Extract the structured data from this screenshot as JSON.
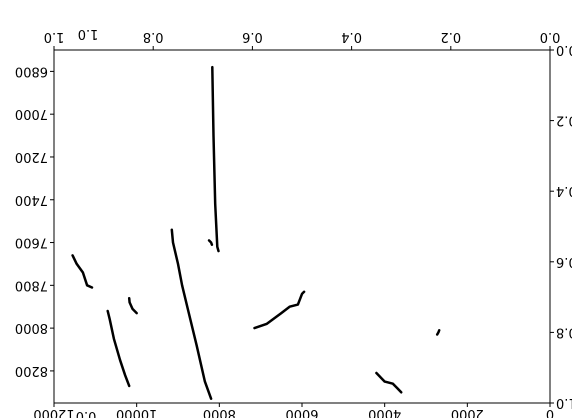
{
  "chart_data": {
    "type": "line",
    "title": "",
    "xlabel": "",
    "ylabel": "",
    "orientation": "rotated-180",
    "axes_primary": {
      "xlim": [
        0.0,
        1.0
      ],
      "ylim": [
        0.0,
        1.0
      ],
      "xticks": [
        "0.0",
        "0.2",
        "0.4",
        "0.6",
        "0.8",
        "1.0"
      ],
      "yticks": [
        "0.0",
        "0.2",
        "0.4",
        "0.6",
        "0.8",
        "1.0"
      ]
    },
    "axes_secondary": {
      "xlim": [
        0,
        12000
      ],
      "ylim": [
        6700,
        8350
      ],
      "xticks": [
        "0",
        "2000",
        "4000",
        "6000",
        "8000",
        "10000",
        "12000"
      ],
      "yticks": [
        "6800",
        "7000",
        "7200",
        "7400",
        "7600",
        "7800",
        "8000",
        "8200"
      ]
    },
    "stray_labels": [
      "1.0",
      "0.0"
    ],
    "grid": false,
    "legend": "none",
    "colors": {
      "line": "#000000",
      "axes": "#000000",
      "background": "#ffffff"
    },
    "series": [
      {
        "points": [
          [
            10700,
            7920
          ],
          [
            10650,
            7960
          ],
          [
            10550,
            8050
          ],
          [
            10400,
            8150
          ],
          [
            10280,
            8220
          ],
          [
            10180,
            8270
          ]
        ]
      },
      {
        "points": [
          [
            9150,
            7540
          ],
          [
            9120,
            7600
          ],
          [
            9000,
            7700
          ],
          [
            8900,
            7800
          ],
          [
            8750,
            7920
          ],
          [
            8550,
            8080
          ],
          [
            8350,
            8250
          ],
          [
            8200,
            8330
          ]
        ]
      },
      {
        "points": [
          [
            4200,
            8210
          ],
          [
            4000,
            8250
          ],
          [
            3800,
            8260
          ],
          [
            3750,
            8270
          ],
          [
            3700,
            8280
          ],
          [
            3600,
            8300
          ]
        ]
      },
      {
        "points": [
          [
            2680,
            8010
          ],
          [
            2700,
            8020
          ],
          [
            2730,
            8030
          ]
        ]
      },
      {
        "points": [
          [
            8170,
            6780
          ],
          [
            8140,
            7100
          ],
          [
            8100,
            7420
          ],
          [
            8050,
            7620
          ],
          [
            8020,
            7640
          ]
        ]
      },
      {
        "points": [
          [
            5950,
            7830
          ],
          [
            6000,
            7840
          ],
          [
            6100,
            7890
          ],
          [
            6300,
            7900
          ],
          [
            6500,
            7930
          ],
          [
            6850,
            7980
          ],
          [
            7150,
            8000
          ]
        ]
      },
      {
        "points": [
          [
            10180,
            7860
          ],
          [
            10170,
            7880
          ],
          [
            10100,
            7910
          ],
          [
            10000,
            7930
          ]
        ]
      },
      {
        "points": [
          [
            11550,
            7660
          ],
          [
            11450,
            7700
          ],
          [
            11300,
            7740
          ],
          [
            11200,
            7800
          ],
          [
            11080,
            7810
          ]
        ]
      },
      {
        "points": [
          [
            8180,
            7610
          ],
          [
            8200,
            7600
          ],
          [
            8250,
            7590
          ]
        ]
      }
    ]
  }
}
